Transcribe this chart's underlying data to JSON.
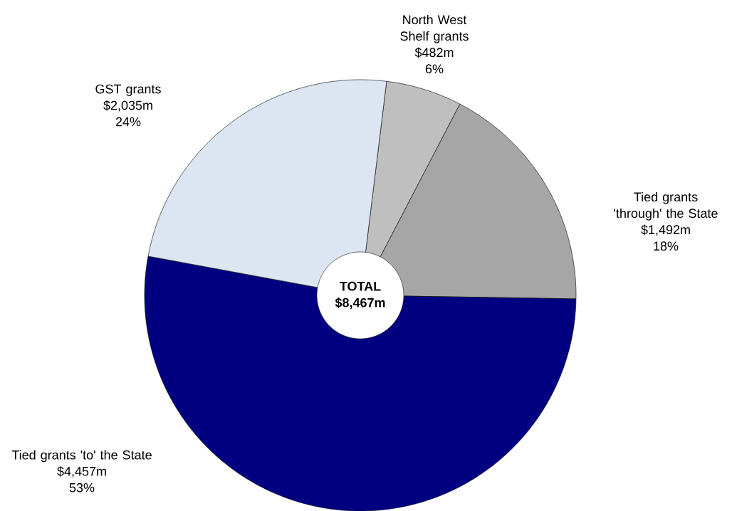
{
  "chart_data": {
    "type": "donut",
    "categories": [
      "North West Shelf grants",
      "Tied grants 'through' the State",
      "Tied grants 'to' the State",
      "GST grants"
    ],
    "values": [
      482,
      1492,
      4457,
      2035
    ],
    "value_labels": [
      "$482m",
      "$1,492m",
      "$4,457m",
      "$2,035m"
    ],
    "colors": [
      "#bfbfbf",
      "#a6a6a6",
      "#000080",
      "#dce6f2"
    ],
    "annotations": [
      "TOTAL $8,467m",
      "6%",
      "18%",
      "53%",
      "24%"
    ]
  }
}
